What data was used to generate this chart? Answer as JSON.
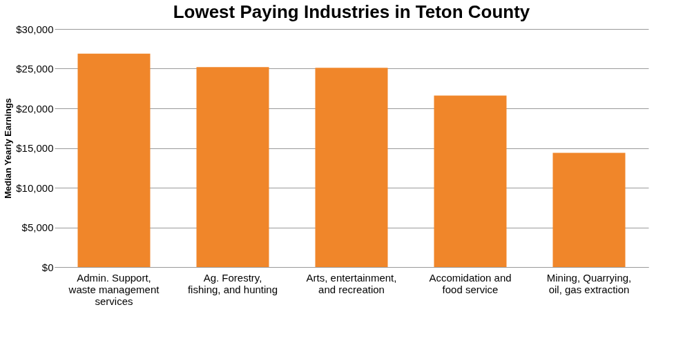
{
  "chart_data": {
    "type": "bar",
    "title": "Lowest Paying Industries in Teton County",
    "ylabel": "Median Yearly Earnings",
    "categories": [
      "Admin. Support, waste management services",
      "Ag. Forestry, fishing, and hunting",
      "Arts, entertainment, and recreation",
      "Accomidation and food service",
      "Mining, Quarrying, oil, gas extraction"
    ],
    "values": [
      26900,
      25200,
      25100,
      21600,
      14400
    ],
    "color": "#f0862a",
    "ylim": [
      0,
      30000
    ],
    "yticks": [
      {
        "value": 0,
        "label": "$0"
      },
      {
        "value": 5000,
        "label": "$5,000"
      },
      {
        "value": 10000,
        "label": "$10,000"
      },
      {
        "value": 15000,
        "label": "$15,000"
      },
      {
        "value": 20000,
        "label": "$20,000"
      },
      {
        "value": 25000,
        "label": "$25,000"
      },
      {
        "value": 30000,
        "label": "$30,000"
      }
    ],
    "grid": "y"
  }
}
